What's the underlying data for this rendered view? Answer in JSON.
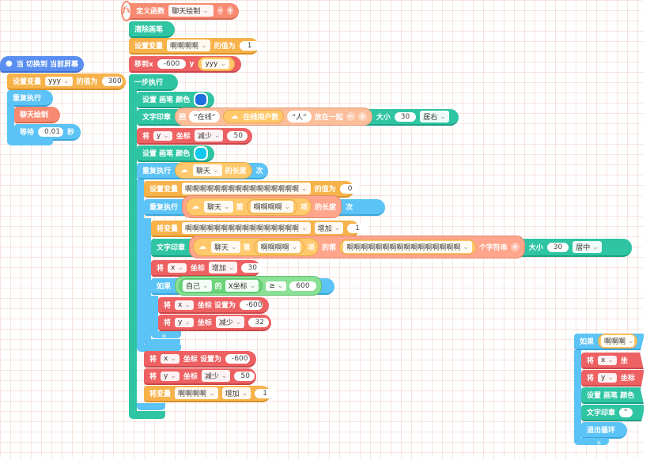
{
  "colors": {
    "red": "#ee6163",
    "orange": "#f7b24a",
    "teal": "#2fc5a3",
    "blue": "#5bc3f5",
    "salmon": "#f88a71",
    "event": "#5a8ef0",
    "green": "#6cd47a",
    "blue_swatch": "#1e6fe0",
    "cyan_swatch": "#13c8ee"
  },
  "left": {
    "event_label": "当 切换到 当前屏幕",
    "set_var_label": "设置变量",
    "set_var_name": "yyy",
    "set_var_mid": "的值为",
    "set_var_value": "300",
    "repeat_label": "重复执行",
    "call_label": "聊天绘制",
    "wait_label": "等待",
    "wait_value": "0.01",
    "wait_unit": "秒"
  },
  "main": {
    "define_label": "定义函数",
    "define_name": "聊天绘制",
    "clear_label": "清除画笔",
    "setvar1": {
      "label": "设置变量",
      "name": "啊啊啊啊",
      "mid": "的值为",
      "value": "1"
    },
    "move": {
      "label": "移到x",
      "x": "-600",
      "y_label": "y",
      "y_var": "yyy"
    },
    "step_label": "一步执行",
    "pen1": {
      "label": "设置 画笔 颜色"
    },
    "print1": {
      "label": "文字印章",
      "join": "把",
      "str1": "“在线”",
      "online": "在线用户数",
      "str2": "“人”",
      "together": "放在一起",
      "size_label": "大小",
      "size": "30",
      "align": "居右"
    },
    "y_change1": {
      "label": "将",
      "axis": "y",
      "coord": "坐标",
      "op": "减少",
      "value": "50"
    },
    "pen2": {
      "label": "设置 画笔 颜色"
    },
    "repeat_len": {
      "label": "重复执行",
      "list": "聊天",
      "of": "的长度",
      "times": "次"
    },
    "setvar2": {
      "label": "设置变量",
      "name": "啊啊啊啊啊啊啊啊啊啊啊啊啊啊啊啊",
      "mid": "的值为",
      "value": "0"
    },
    "repeat_inner": {
      "label": "重复执行",
      "list": "聊天",
      "nth": "第",
      "var": "啊啊啊啊",
      "item": "项",
      "of": "的长度",
      "times": "次"
    },
    "changevar": {
      "label": "将变量",
      "name": "啊啊啊啊啊啊啊啊啊啊啊啊啊啊啊啊",
      "op": "增加",
      "value": "1"
    },
    "print2": {
      "label": "文字印章",
      "list": "聊天",
      "nth": "第",
      "var": "啊啊啊啊",
      "item": "项",
      "of": "的第",
      "var2": "啊啊啊啊啊啊啊啊啊啊啊啊啊啊啊啊",
      "char": "个字符串",
      "size_label": "大小",
      "size": "30",
      "align": "居中"
    },
    "x_change": {
      "label": "将",
      "axis": "x",
      "coord": "坐标",
      "op": "增加",
      "value": "30"
    },
    "if_block": {
      "label": "如果",
      "self": "自己",
      "of": "的",
      "prop": "X坐标",
      "cmp": "≥",
      "value": "600"
    },
    "x_set1": {
      "label": "将",
      "axis": "x",
      "coord": "坐标 设置为",
      "value": "-600"
    },
    "y_change2": {
      "label": "将",
      "axis": "y",
      "coord": "坐标",
      "op": "减少",
      "value": "32"
    },
    "x_set2": {
      "label": "将",
      "axis": "x",
      "coord": "坐标 设置为",
      "value": "-600"
    },
    "y_change3": {
      "label": "将",
      "axis": "y",
      "coord": "坐标",
      "op": "减少",
      "value": "50"
    },
    "changevar2": {
      "label": "将变量",
      "name": "啊啊啊啊",
      "op": "增加",
      "value": "1"
    }
  },
  "right": {
    "if_label": "如果",
    "if_var": "啊啊啊",
    "r1_label": "将",
    "r1_axis": "x",
    "r1_coord": "坐",
    "r2_label": "将",
    "r2_axis": "y",
    "r2_coord": "坐标",
    "pen_label": "设置 画笔 颜色",
    "print_label": "文字印章",
    "print_str": "“",
    "exit_label": "退出循环"
  }
}
